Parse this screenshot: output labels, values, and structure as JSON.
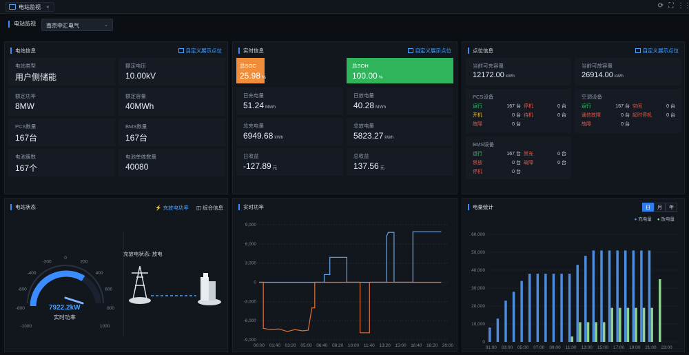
{
  "top": {
    "tab_label": "电站监视",
    "tab_close": "×"
  },
  "filter": {
    "label": "电站监视",
    "station": "南京中汇电气"
  },
  "station_info": {
    "title": "电站信息",
    "link": "自定义展示点位",
    "items": [
      {
        "label": "电站类型",
        "value": "用户侧储能"
      },
      {
        "label": "额定电压",
        "value": "10.00kV"
      },
      {
        "label": "额定功率",
        "value": "8MW"
      },
      {
        "label": "额定容量",
        "value": "40MWh"
      },
      {
        "label": "PCS数量",
        "value": "167台"
      },
      {
        "label": "BMS数量",
        "value": "167台"
      },
      {
        "label": "电池簇数",
        "value": "167个"
      },
      {
        "label": "电池单体数量",
        "value": "40080"
      }
    ]
  },
  "realtime_info": {
    "title": "实时信息",
    "link": "自定义展示点位",
    "soc": {
      "label": "总SOC",
      "value": "25.98",
      "unit": "%"
    },
    "soh": {
      "label": "总SOH",
      "value": "100.00",
      "unit": "%"
    },
    "items": [
      {
        "label": "日充电量",
        "value": "51.24",
        "unit": "MWh"
      },
      {
        "label": "日放电量",
        "value": "40.28",
        "unit": "MWh"
      },
      {
        "label": "总充电量",
        "value": "6949.68",
        "unit": "kWh"
      },
      {
        "label": "总放电量",
        "value": "5823.27",
        "unit": "kWh"
      },
      {
        "label": "日收益",
        "value": "-127.89",
        "unit": "元"
      },
      {
        "label": "总收益",
        "value": "137.56",
        "unit": "元"
      }
    ]
  },
  "point_info": {
    "title": "点位信息",
    "link": "自定义展示点位",
    "charge_cap": {
      "label": "当前可充容量",
      "value": "12172.00",
      "unit": "kWh"
    },
    "discharge_cap": {
      "label": "当前可放容量",
      "value": "26914.00",
      "unit": "kWh"
    },
    "pcs": {
      "title": "PCS设备",
      "rows": [
        {
          "a": "运行",
          "av": "167 台",
          "b": "停机",
          "bv": "0 台"
        },
        {
          "a": "开机",
          "av": "0 台",
          "b": "待机",
          "bv": "0 台"
        },
        {
          "a": "故障",
          "av": "0 台",
          "b": "",
          "bv": ""
        }
      ]
    },
    "ac": {
      "title": "空调设备",
      "rows": [
        {
          "a": "运行",
          "av": "167 台",
          "b": "空闲",
          "bv": "0 台"
        },
        {
          "a": "通信故障",
          "av": "0 台",
          "b": "起时停机",
          "bv": "0 台"
        },
        {
          "a": "故障",
          "av": "0 台",
          "b": "",
          "bv": ""
        }
      ]
    },
    "bms": {
      "title": "BMS设备",
      "rows": [
        {
          "a": "运行",
          "av": "167 台",
          "b": "禁充",
          "bv": "0 台"
        },
        {
          "a": "禁放",
          "av": "0 台",
          "b": "故障",
          "bv": "0 台"
        },
        {
          "a": "停机",
          "av": "0 台",
          "b": "",
          "bv": ""
        }
      ]
    }
  },
  "station_status": {
    "title": "电站状态",
    "tab1": "充放电功率",
    "tab2": "综合信息",
    "gauge_value": "7922.2kW",
    "gauge_label": "实时功率",
    "gauge_ticks": [
      "-1000",
      "-800",
      "-600",
      "-400",
      "-200",
      "0",
      "200",
      "400",
      "600",
      "800",
      "1000"
    ],
    "state_label": "充放电状态:",
    "state_value": "放电"
  },
  "power_chart": {
    "title": "实时功率",
    "chart_data": {
      "type": "line",
      "ylim": [
        -9000,
        9000
      ],
      "yticks": [
        "9,000",
        "6,000",
        "3,000",
        "0",
        "-3,000",
        "-6,000",
        "-9,000"
      ],
      "xticks": [
        "00:00",
        "01:40",
        "03:20",
        "05:00",
        "06:40",
        "08:20",
        "10:00",
        "11:40",
        "13:20",
        "15:00",
        "16:40",
        "18:20",
        "20:00"
      ],
      "series": [
        {
          "color": "#6aa6e8",
          "values": [
            [
              0,
              0
            ],
            [
              6.9,
              0
            ],
            [
              6.9,
              1200
            ],
            [
              7.5,
              1200
            ],
            [
              7.5,
              3900
            ],
            [
              9.3,
              3900
            ],
            [
              9.3,
              0
            ],
            [
              13.5,
              0
            ],
            [
              13.5,
              7200
            ],
            [
              13.7,
              7800
            ],
            [
              14.3,
              7800
            ],
            [
              14.3,
              0
            ],
            [
              16.3,
              0
            ],
            [
              16.3,
              7900
            ],
            [
              19.3,
              7900
            ]
          ]
        },
        {
          "color": "#e0743a",
          "values": [
            [
              0,
              0
            ],
            [
              0.45,
              0
            ],
            [
              0.45,
              -7200
            ],
            [
              1.2,
              -7400
            ],
            [
              2.1,
              -7300
            ],
            [
              3.0,
              -7700
            ],
            [
              3.8,
              -7400
            ],
            [
              4.6,
              -7600
            ],
            [
              5.2,
              -7500
            ],
            [
              5.6,
              -4000
            ],
            [
              5.9,
              -4000
            ],
            [
              5.9,
              0
            ],
            [
              10.7,
              0
            ],
            [
              10.7,
              -7900
            ],
            [
              11.7,
              -7900
            ],
            [
              11.7,
              0
            ],
            [
              19.3,
              0
            ]
          ]
        }
      ]
    }
  },
  "energy_chart": {
    "title": "电量统计",
    "btn_day": "日",
    "btn_month": "月",
    "btn_year": "年",
    "legend_charge": "充电量",
    "legend_discharge": "放电量",
    "chart_data": {
      "type": "bar",
      "ylim": [
        0,
        60000
      ],
      "yticks": [
        "60,000",
        "50,000",
        "40,000",
        "30,000",
        "20,000",
        "10,000",
        "0"
      ],
      "xticks": [
        "01:00",
        "03:00",
        "05:00",
        "07:00",
        "09:00",
        "11:00",
        "13:00",
        "15:00",
        "17:00",
        "19:00",
        "21:00",
        "23:00"
      ],
      "series": [
        {
          "name": "充电量",
          "color": "#4c8de0",
          "values": [
            8000,
            13000,
            23000,
            28000,
            34000,
            38000,
            38000,
            38000,
            38000,
            38000,
            38000,
            43000,
            48000,
            51000,
            51000,
            51000,
            51000,
            51000,
            51000,
            51000,
            51000,
            0,
            0,
            0
          ]
        },
        {
          "name": "放电量",
          "color": "#8fd18f",
          "values": [
            0,
            0,
            0,
            0,
            0,
            0,
            0,
            0,
            0,
            0,
            3000,
            11000,
            11000,
            11000,
            11000,
            19000,
            19000,
            19000,
            19000,
            19000,
            19000,
            35000,
            0,
            0
          ]
        }
      ]
    }
  }
}
